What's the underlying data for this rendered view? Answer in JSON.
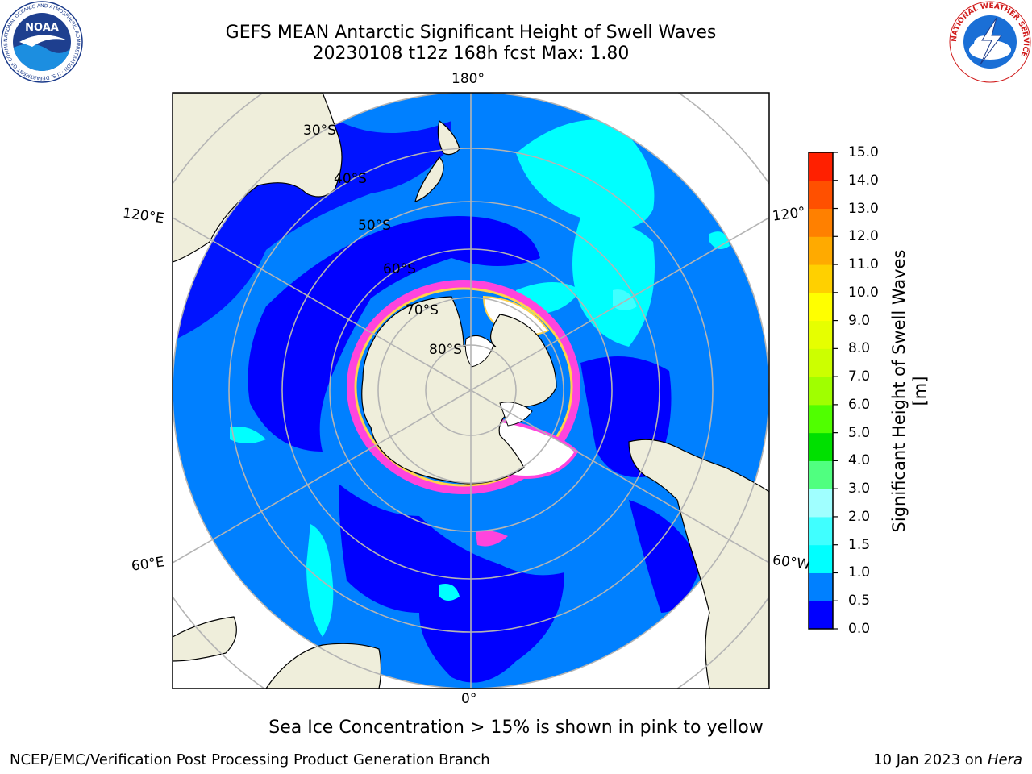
{
  "title": {
    "line1": "GEFS MEAN Antarctic Significant Height of Swell Waves",
    "line2": "20230108 t12z 168h fcst   Max: 1.80"
  },
  "map": {
    "projection": "south-polar-stereographic",
    "longitude_labels": [
      "180°",
      "120°E",
      "120°",
      "60°E",
      "60°W",
      "0°"
    ],
    "latitude_labels": [
      "30°S",
      "40°S",
      "50°S",
      "60°S",
      "70°S",
      "80°S"
    ],
    "colors": {
      "land": "#efeedb",
      "ice_white": "#ffffff",
      "ice_pink": "#ff44dd",
      "ice_yellow": "#ffd24a",
      "grid": "#b4b4b4"
    }
  },
  "colorbar": {
    "label": "Significant Height of Swell Waves [m]",
    "tick_labels": [
      "0.0",
      "0.5",
      "1.0",
      "1.5",
      "2.0",
      "3.0",
      "4.0",
      "5.0",
      "6.0",
      "7.0",
      "8.0",
      "9.0",
      "10.0",
      "11.0",
      "12.0",
      "13.0",
      "14.0",
      "15.0"
    ],
    "bin_colors": [
      "#0000ff",
      "#0080ff",
      "#00ffff",
      "#40ffff",
      "#a0ffff",
      "#50ff80",
      "#00e000",
      "#50ff00",
      "#a0ff00",
      "#ccff00",
      "#e6ff00",
      "#ffff00",
      "#ffd000",
      "#ffaa00",
      "#ff8000",
      "#ff5000",
      "#ff2000"
    ],
    "value_range": [
      0.0,
      15.0
    ]
  },
  "note": "Sea Ice Concentration > 15% is shown in pink to yellow",
  "footer": {
    "left": "NCEP/EMC/Verification Post Processing Product Generation Branch",
    "right_prefix": "10 Jan 2023 on ",
    "right_machine": "Hera"
  },
  "logos": {
    "noara_text": "NOAA",
    "noaa_ring": "NATIONAL OCEANIC AND ATMOSPHERIC ADMINISTRATION · U.S. DEPARTMENT OF COMMERCE",
    "nws_ring": "NATIONAL WEATHER SERVICE"
  }
}
